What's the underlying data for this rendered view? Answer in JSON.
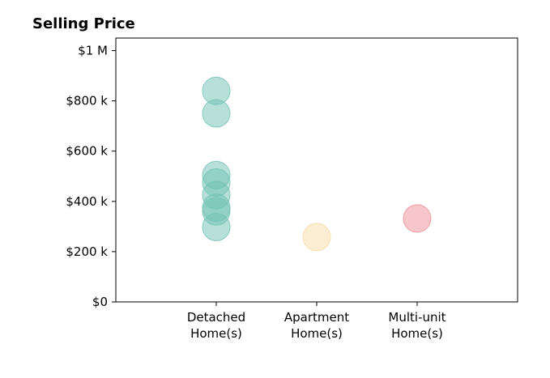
{
  "chart_data": {
    "type": "scatter",
    "title": "Selling Price",
    "xlabel": "",
    "ylabel": "",
    "categories": [
      [
        "Detached",
        "Home(s)"
      ],
      [
        "Apartment",
        "Home(s)"
      ],
      [
        "Multi-unit",
        "Home(s)"
      ]
    ],
    "ylim": [
      0,
      1050000
    ],
    "yticks": [
      0,
      200000,
      400000,
      600000,
      800000,
      1000000
    ],
    "ytick_labels": [
      "$0",
      "$200 k",
      "$400 k",
      "$600 k",
      "$800 k",
      "$1 M"
    ],
    "xlim": [
      -1,
      3
    ],
    "grid": false,
    "series": [
      {
        "category_index": 0,
        "color": "#6fc2b4",
        "values": [
          840000,
          750000,
          505000,
          475000,
          425000,
          375000,
          360000,
          298000
        ]
      },
      {
        "category_index": 1,
        "color": "#f6dca4",
        "values": [
          258000
        ]
      },
      {
        "category_index": 2,
        "color": "#ef8d95",
        "values": [
          332000
        ]
      }
    ]
  }
}
